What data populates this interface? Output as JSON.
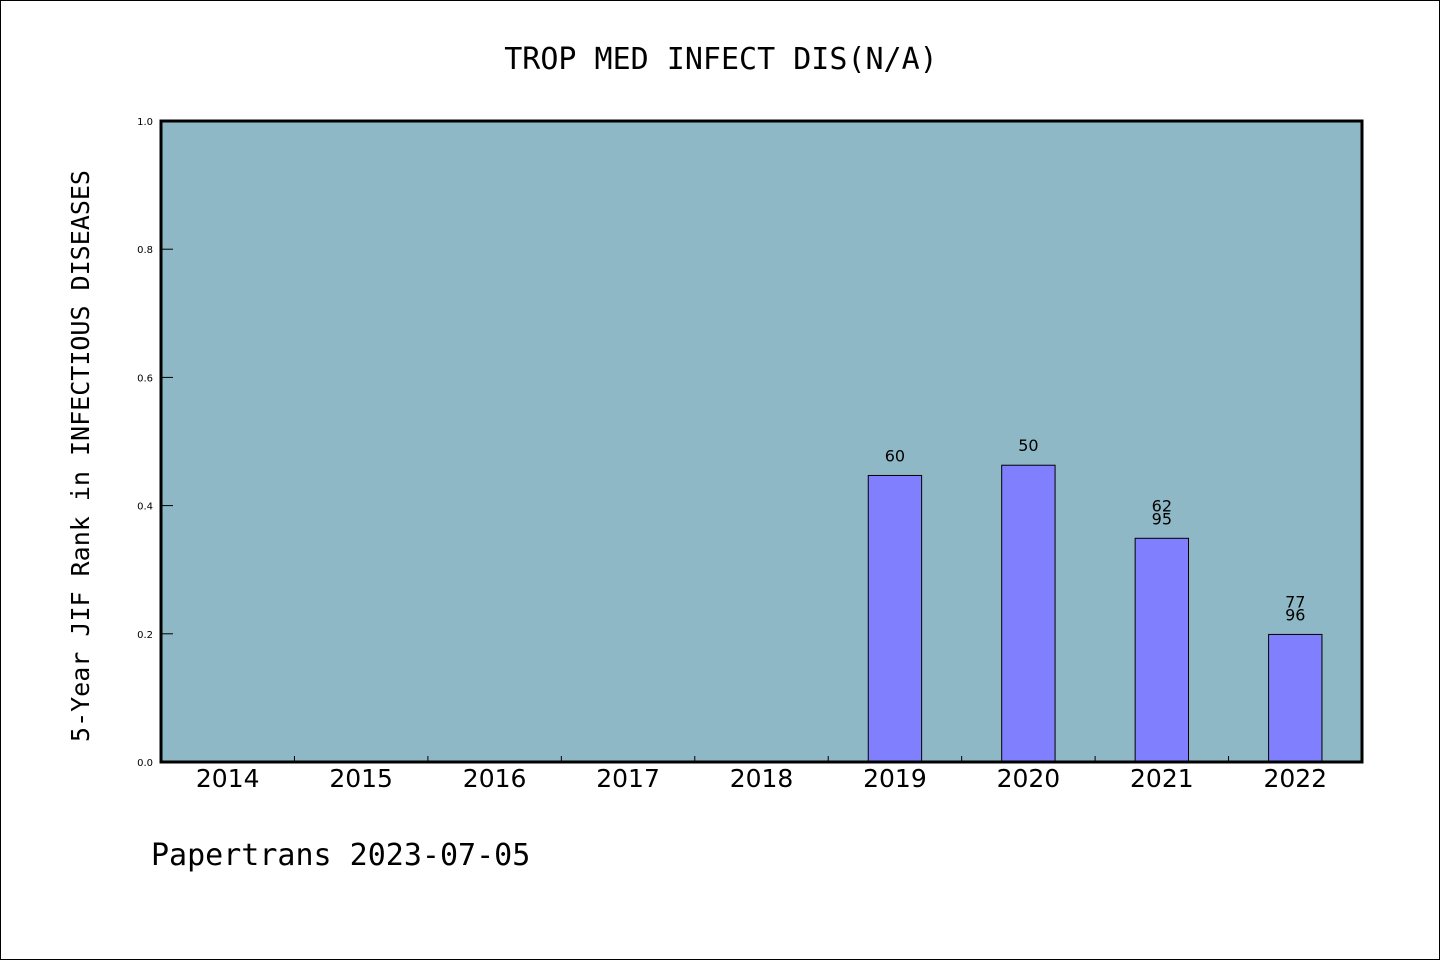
{
  "chart_data": {
    "type": "bar",
    "title": "TROP MED INFECT DIS(N/A)",
    "xlabel": "",
    "ylabel": "5-Year JIF Rank in INFECTIOUS DISEASES",
    "ylim": [
      0,
      1.0
    ],
    "yticks": [
      "0.0",
      "0.2",
      "0.4",
      "0.6",
      "0.8",
      "1.0"
    ],
    "categories": [
      "2014",
      "2015",
      "2016",
      "2017",
      "2018",
      "2019",
      "2020",
      "2021",
      "2022"
    ],
    "values": [
      null,
      null,
      null,
      null,
      null,
      0.447,
      0.463,
      0.349,
      0.199
    ],
    "bar_labels": [
      [],
      [],
      [],
      [],
      [],
      [
        "60"
      ],
      [
        "50"
      ],
      [
        "62",
        "95"
      ],
      [
        "77",
        "96"
      ]
    ],
    "grid": false,
    "colors": {
      "plot_background": "#8fb8c6",
      "bar_fill": "#8080ff",
      "bar_edge": "#000000",
      "axes_edge": "#000000"
    }
  },
  "footer": {
    "text": "Papertrans 2023-07-05"
  }
}
